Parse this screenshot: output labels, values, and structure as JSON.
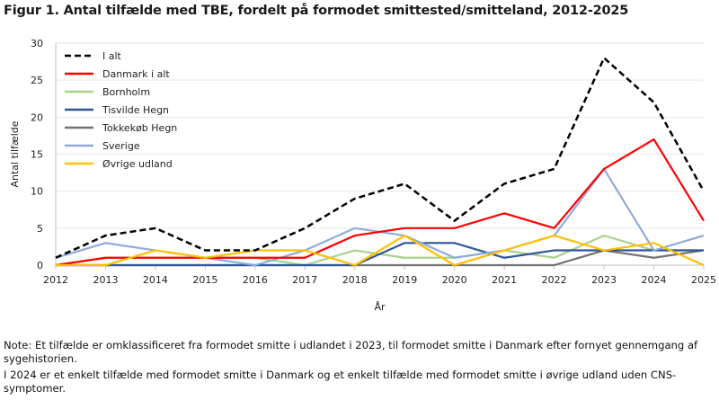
{
  "chart_data": {
    "type": "line",
    "title": "Figur 1. Antal tilfælde med TBE, fordelt på formodet smittested/smitteland,  2012-2025",
    "xlabel": "År",
    "ylabel": "Antal tilfælde",
    "ylim": [
      0,
      30
    ],
    "yticks": [
      0,
      5,
      10,
      15,
      20,
      25,
      30
    ],
    "grid": "horizontal",
    "legend": "top-left",
    "x": [
      "2012",
      "2013",
      "2014",
      "2015",
      "2016",
      "2017",
      "2018",
      "2019",
      "2020",
      "2021",
      "2022",
      "2023",
      "2024",
      "2025"
    ],
    "series": [
      {
        "name": "I alt",
        "color": "#000000",
        "dashed": true,
        "values": [
          1,
          4,
          5,
          2,
          2,
          5,
          9,
          11,
          6,
          11,
          13,
          28,
          22,
          10
        ]
      },
      {
        "name": "Danmark i alt",
        "color": "#ff0000",
        "values": [
          0,
          1,
          1,
          1,
          1,
          1,
          4,
          5,
          5,
          7,
          5,
          13,
          17,
          6
        ]
      },
      {
        "name": "Bornholm",
        "color": "#a9d18e",
        "values": [
          0,
          1,
          1,
          1,
          1,
          0,
          2,
          1,
          1,
          2,
          1,
          4,
          2,
          2
        ]
      },
      {
        "name": "Tisvilde Hegn",
        "color": "#2f5597",
        "values": [
          0,
          0,
          0,
          0,
          0,
          0,
          0,
          3,
          3,
          1,
          2,
          2,
          2,
          2
        ]
      },
      {
        "name": "Tokkekøb Hegn",
        "color": "#767171",
        "values": [
          0,
          0,
          0,
          0,
          0,
          0,
          0,
          0,
          0,
          0,
          0,
          2,
          1,
          2
        ]
      },
      {
        "name": "Sverige",
        "color": "#8faadc",
        "values": [
          1,
          3,
          2,
          1,
          0,
          2,
          5,
          4,
          1,
          2,
          4,
          13,
          2,
          4
        ]
      },
      {
        "name": "Øvrige udland",
        "color": "#ffc000",
        "values": [
          0,
          0,
          2,
          1,
          2,
          2,
          0,
          4,
          0,
          2,
          4,
          2,
          3,
          0
        ]
      }
    ]
  },
  "notes": [
    "Note: Et tilfælde er omklassificeret fra formodet smitte i udlandet i 2023, til formodet smitte i Danmark efter fornyet gennemgang af sygehistorien.",
    "I 2024 er et enkelt tilfælde med formodet smitte i Danmark og et enkelt tilfælde med formodet smitte i øvrige udland uden CNS-symptomer."
  ]
}
